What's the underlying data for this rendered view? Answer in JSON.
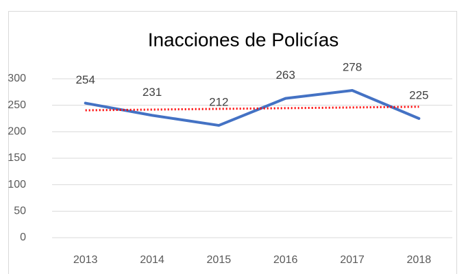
{
  "chart_data": {
    "type": "line",
    "title": "Inacciones de Policías",
    "categories": [
      "2013",
      "2014",
      "2015",
      "2016",
      "2017",
      "2018"
    ],
    "values": [
      254,
      231,
      212,
      263,
      278,
      225
    ],
    "color": "#4472c4",
    "trendline": {
      "color": "#ff0000",
      "values": [
        240.5,
        247.2
      ]
    },
    "ylim": [
      0,
      300
    ],
    "yticks": [
      0,
      50,
      100,
      150,
      200,
      250,
      300
    ],
    "grid": true
  }
}
